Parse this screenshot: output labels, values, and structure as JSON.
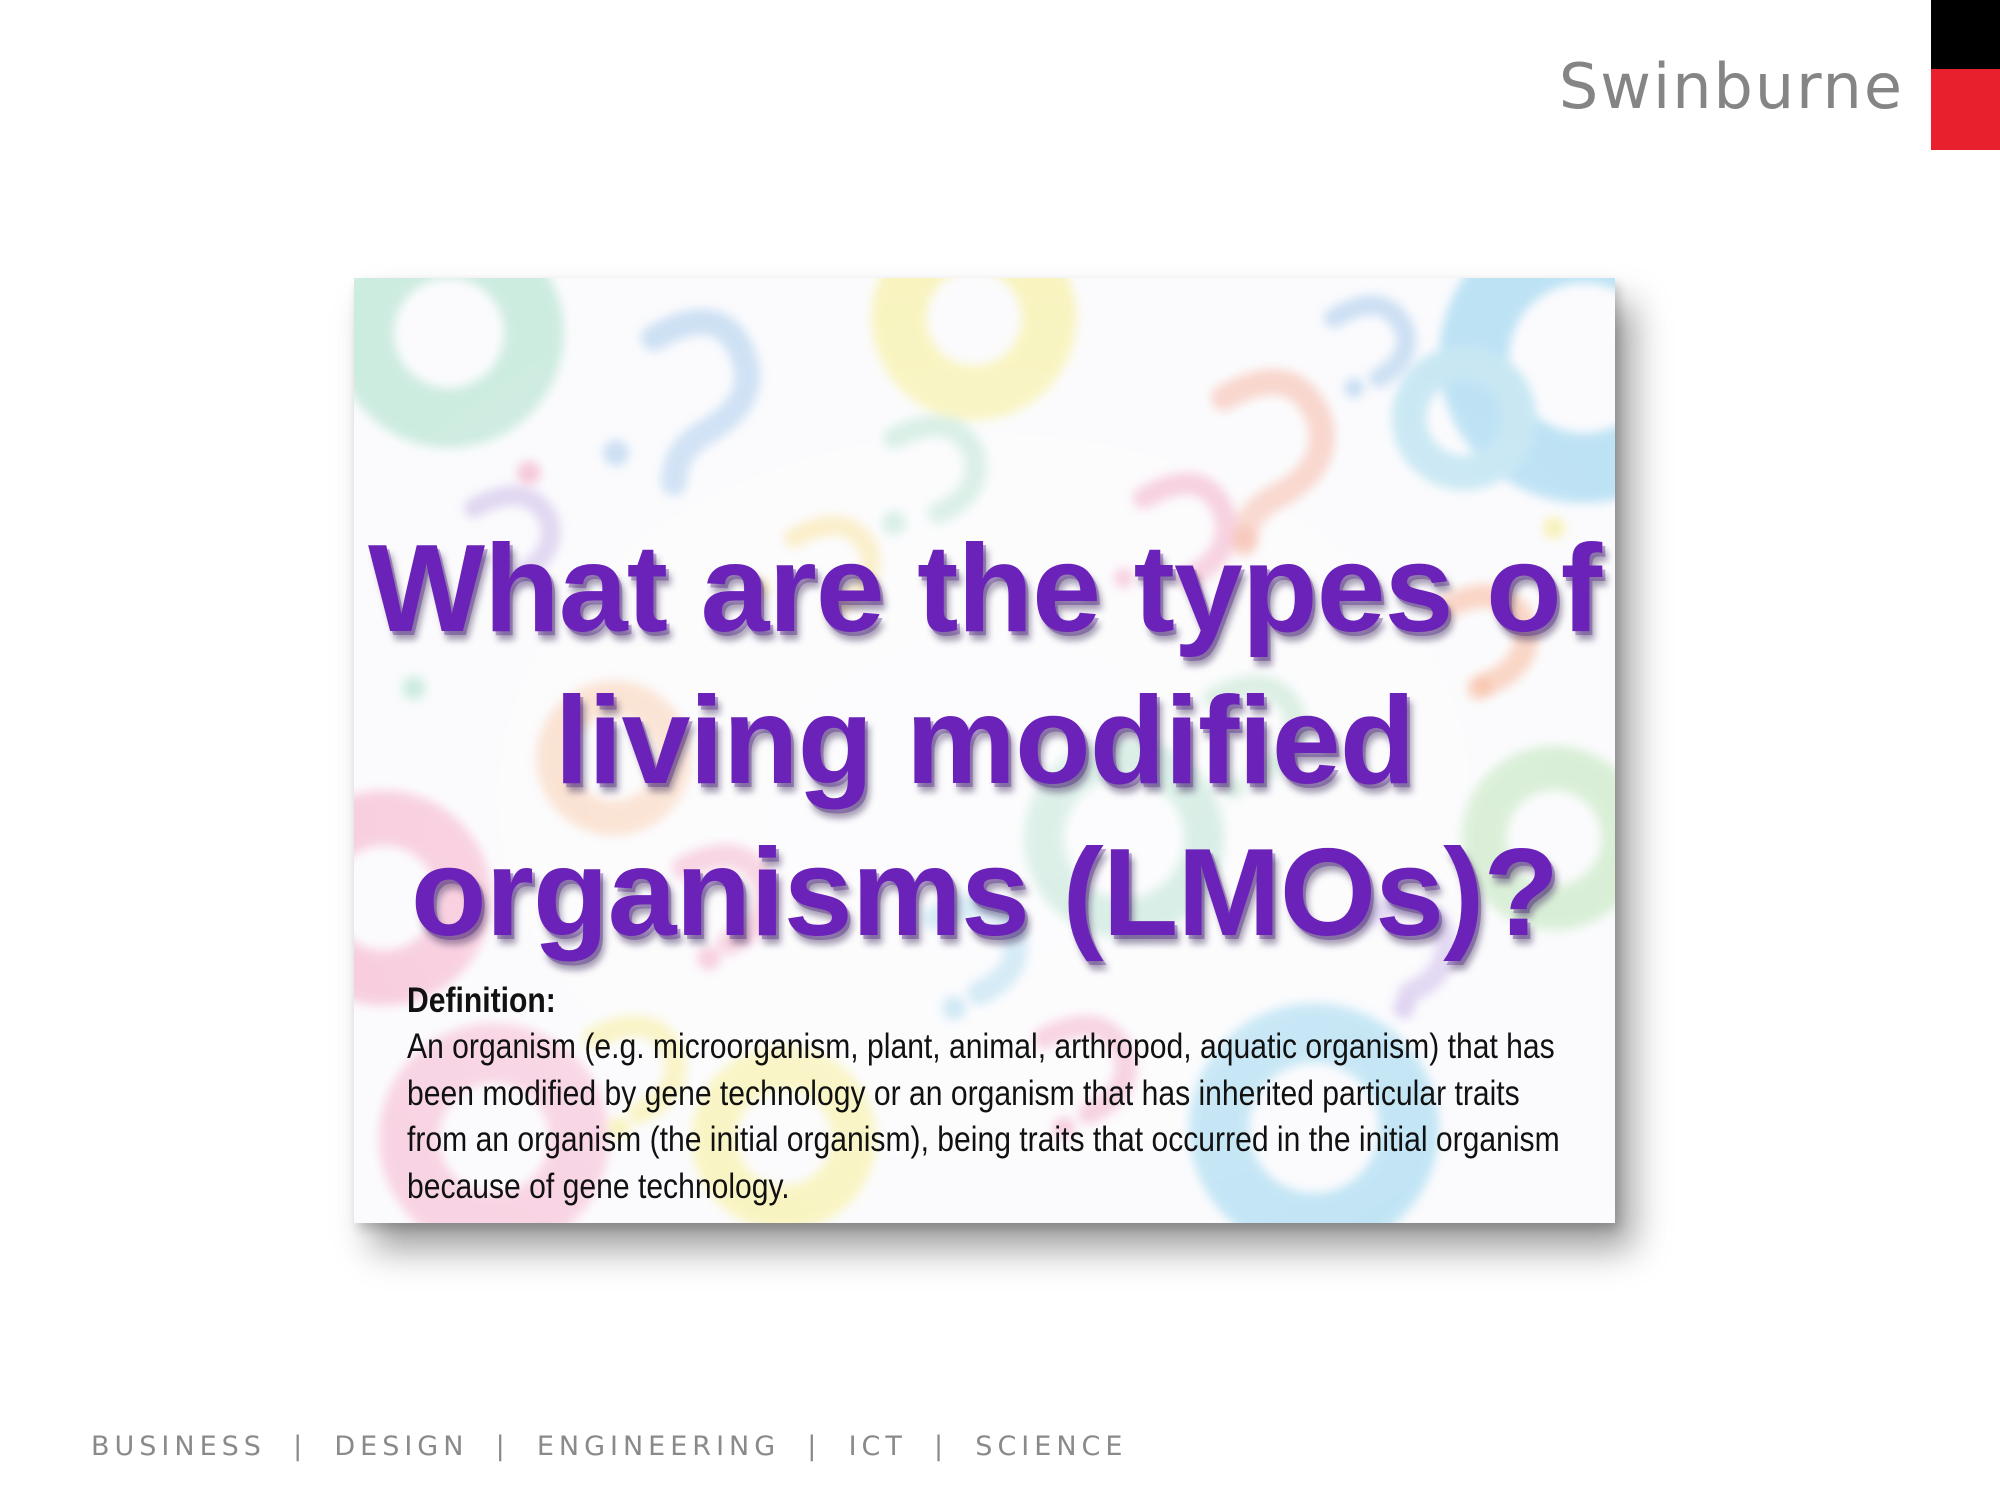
{
  "brand": {
    "wordmark": "Swinburne",
    "colors": {
      "black": "#000000",
      "red": "#e8202e",
      "grey": "#858585"
    }
  },
  "card": {
    "title": "What are the types of  living modified organisms (LMOs)?",
    "title_color": "#6a22b8",
    "background": "pastel question-mark pattern",
    "definition_label": "Definition:",
    "definition_text": "An organism (e.g. microorganism, plant, animal, arthropod, aquatic organism) that has been modified by gene technology or an organism that has inherited particular traits from an organism (the initial organism), being traits that occurred in the initial organism because of gene technology."
  },
  "footer": {
    "text": "BUSINESS  |  DESIGN  |  ENGINEERING  |  ICT  |  SCIENCE"
  }
}
